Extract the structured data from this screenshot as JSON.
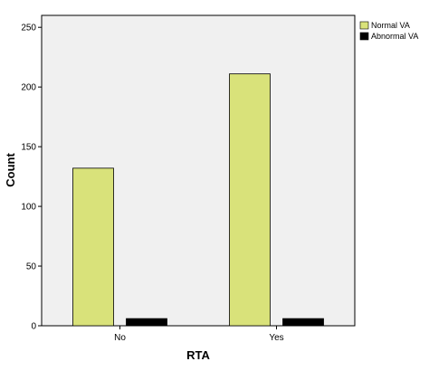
{
  "chart_data": {
    "type": "bar",
    "title": "",
    "xlabel": "RTA",
    "ylabel": "Count",
    "categories": [
      "No",
      "Yes"
    ],
    "series": [
      {
        "name": "Normal VA",
        "values": [
          132,
          211
        ],
        "color": "#d9e27a"
      },
      {
        "name": "Abnormal VA",
        "values": [
          6,
          6
        ],
        "color": "#000000"
      }
    ],
    "ylim": [
      0,
      260
    ],
    "yticks": [
      0,
      50,
      100,
      150,
      200,
      250
    ],
    "grid": false,
    "legend_position": "top-right",
    "plot_background": "#f0f0f0"
  }
}
